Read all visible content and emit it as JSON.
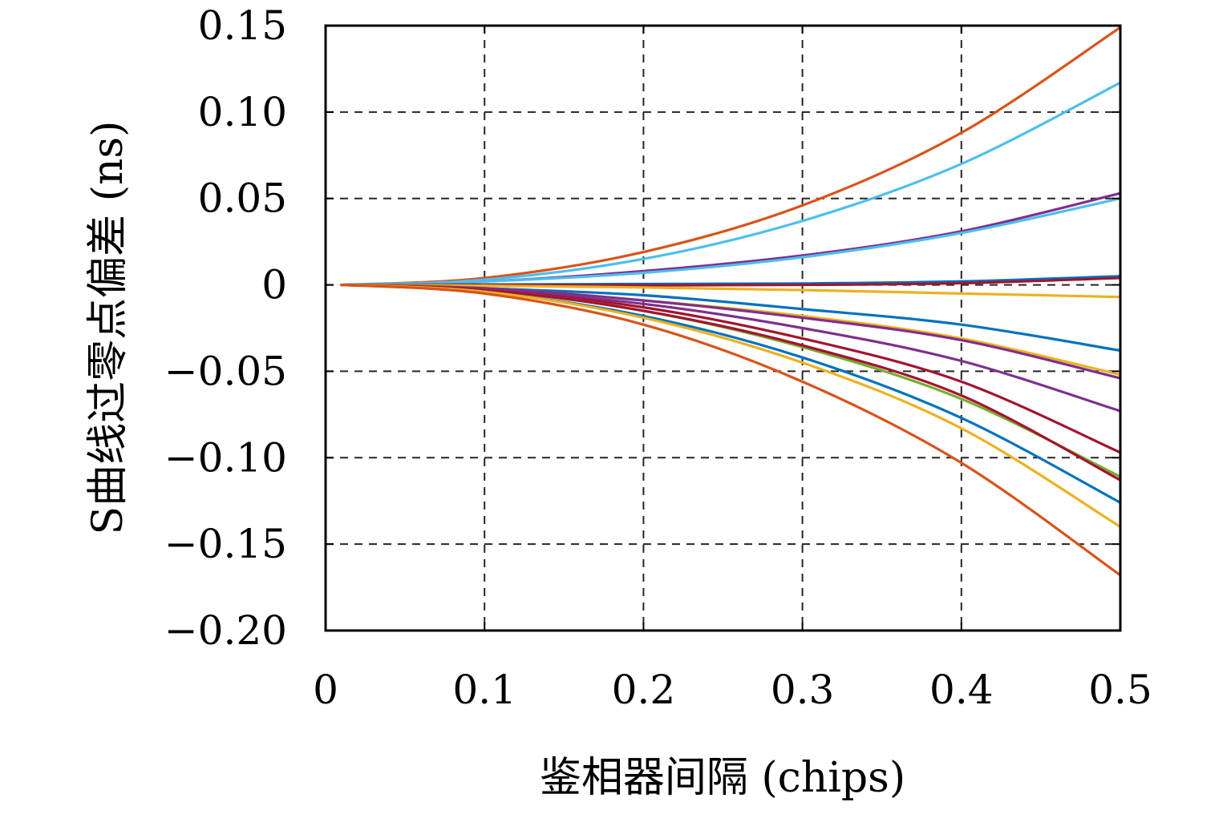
{
  "chart_data": {
    "type": "line",
    "title": "",
    "xlabel": "鉴相器间隔 (chips)",
    "ylabel": "S曲线过零点偏差 (ns)",
    "xlim": [
      0,
      0.5
    ],
    "ylim": [
      -0.2,
      0.15
    ],
    "grid": true,
    "grid_style": "dashed",
    "legend": "none",
    "x_ticks": [
      0,
      0.1,
      0.2,
      0.3,
      0.4,
      0.5
    ],
    "x_tick_labels": [
      "0",
      "0.1",
      "0.2",
      "0.3",
      "0.4",
      "0.5"
    ],
    "y_ticks": [
      0.15,
      0.1,
      0.05,
      0,
      -0.05,
      -0.1,
      -0.15,
      -0.2
    ],
    "y_tick_labels": [
      "0.15",
      "0.10",
      "0.05",
      "0",
      "−0.05",
      "−0.10",
      "−0.15",
      "−0.20"
    ],
    "x": [
      0.01,
      0.1,
      0.2,
      0.3,
      0.4,
      0.5
    ],
    "series": [
      {
        "color": "#D95319",
        "values": [
          0,
          0.004,
          0.019,
          0.046,
          0.088,
          0.149
        ]
      },
      {
        "color": "#4DBEEE",
        "values": [
          0,
          0.003,
          0.015,
          0.037,
          0.07,
          0.117
        ]
      },
      {
        "color": "#7E2F8E",
        "values": [
          0,
          0.002,
          0.008,
          0.017,
          0.031,
          0.053
        ]
      },
      {
        "color": "#4DBEEE",
        "values": [
          0,
          0.002,
          0.007,
          0.016,
          0.03,
          0.05
        ]
      },
      {
        "color": "#0072BD",
        "values": [
          0,
          0.0002,
          0.0005,
          0.0008,
          0.002,
          0.005
        ]
      },
      {
        "color": "#A2142F",
        "values": [
          0,
          0,
          -0.0003,
          0,
          0.001,
          0.004
        ]
      },
      {
        "color": "#EDB120",
        "values": [
          0,
          -0.0005,
          -0.0015,
          -0.003,
          -0.005,
          -0.007
        ]
      },
      {
        "color": "#0072BD",
        "values": [
          0,
          -0.002,
          -0.006,
          -0.014,
          -0.023,
          -0.038
        ]
      },
      {
        "color": "#EDB120",
        "values": [
          0,
          -0.002,
          -0.009,
          -0.018,
          -0.031,
          -0.052
        ]
      },
      {
        "color": "#7E2F8E",
        "values": [
          0,
          -0.002,
          -0.009,
          -0.019,
          -0.032,
          -0.054
        ]
      },
      {
        "color": "#7E2F8E",
        "values": [
          0,
          -0.003,
          -0.011,
          -0.025,
          -0.044,
          -0.073
        ]
      },
      {
        "color": "#A2142F",
        "values": [
          0,
          -0.003,
          -0.013,
          -0.031,
          -0.056,
          -0.097
        ]
      },
      {
        "color": "#77AC30",
        "values": [
          0,
          -0.003,
          -0.015,
          -0.036,
          -0.066,
          -0.111
        ]
      },
      {
        "color": "#A2142F",
        "values": [
          0,
          -0.003,
          -0.015,
          -0.035,
          -0.064,
          -0.113
        ]
      },
      {
        "color": "#0072BD",
        "values": [
          0,
          -0.004,
          -0.018,
          -0.042,
          -0.077,
          -0.126
        ]
      },
      {
        "color": "#EDB120",
        "values": [
          0,
          -0.004,
          -0.019,
          -0.045,
          -0.083,
          -0.14
        ]
      },
      {
        "color": "#D95319",
        "values": [
          0,
          -0.005,
          -0.023,
          -0.056,
          -0.103,
          -0.168
        ]
      }
    ]
  }
}
